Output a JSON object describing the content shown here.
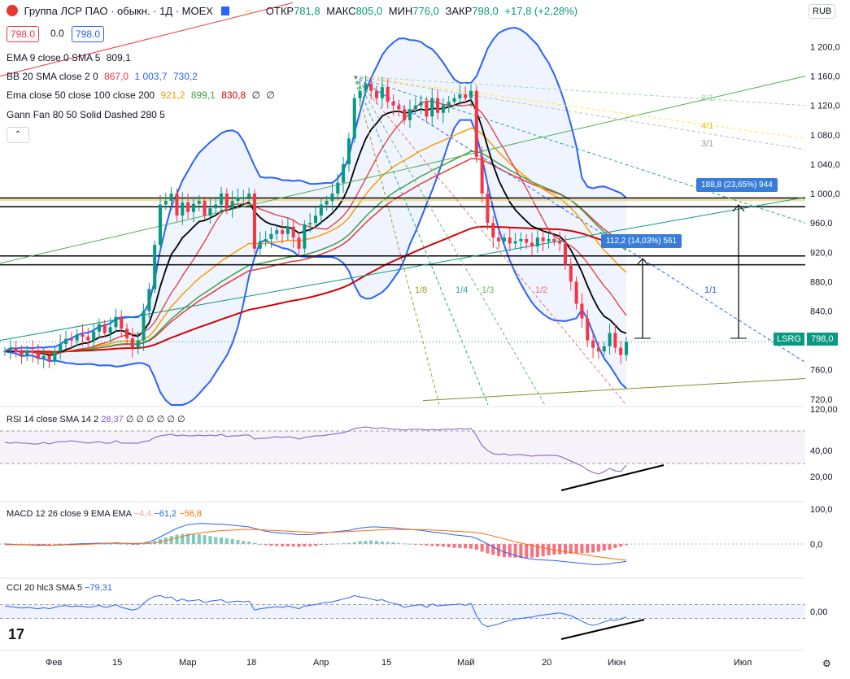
{
  "header": {
    "title": "Группа ЛСР ПАО · обыкн. · 1Д · MOEX",
    "open_label": "ОТКР",
    "open": "781,8",
    "high_label": "МАКС",
    "high": "805,0",
    "low_label": "МИН",
    "low": "776,0",
    "close_label": "ЗАКР",
    "close": "798,0",
    "change": "+17,8 (+2,28%)",
    "currency": "RUB"
  },
  "quote": {
    "bid": "798.0",
    "spread": "0.0",
    "ask": "798.0"
  },
  "legend": {
    "ema9": {
      "label": "EMA 9 close 0 SMA 5",
      "v1": "809,1"
    },
    "bb": {
      "label": "BB 20 SMA close 2 0",
      "v1": "867,0",
      "v2": "1 003,7",
      "v3": "730,2"
    },
    "ema_multi": {
      "label": "Ema close 50 close 100 close 200",
      "v1": "921,2",
      "v2": "899,1",
      "v3": "830,8",
      "v4": "∅",
      "v5": "∅"
    },
    "gann": {
      "label": "Gann Fan 80 50 Solid Dashed 280 5"
    }
  },
  "annotations": {
    "measure_top": "188,8 (23,65%) 944",
    "measure_mid": "112,2 (14,03%) 561",
    "gann_labels": [
      "8/1",
      "4/1",
      "3/1",
      "1/8",
      "1/4",
      "1/3",
      "1/2",
      "1/1"
    ]
  },
  "symbol_tag": "LSRG",
  "last_price": "798,0",
  "rsi": {
    "label": "RSI 14 close SMA 14 2",
    "v1": "28,37",
    "nulls": "∅ ∅ ∅ ∅ ∅ ∅"
  },
  "macd": {
    "label": "MACD 12 26 close 9 EMA EMA",
    "v1": "−4,4",
    "v2": "−61,2",
    "v3": "−56,8"
  },
  "cci": {
    "label": "CCI 20 hlc3 SMA 5",
    "v1": "−79,31"
  },
  "colors": {
    "up": "#089981",
    "down": "#f23645",
    "bb": "#2962ff",
    "ema9": "#000000",
    "ema50": "#e53935",
    "ema100": "#f59f00",
    "ema200": "#43a047",
    "ema_long": "#d50000",
    "rsi": "#7e57c2",
    "macd": "#2962ff",
    "signal": "#ff6d00",
    "cci": "#2962ff"
  },
  "chart_data": [
    {
      "type": "candlestick",
      "title": "",
      "x_tick_labels": [
        "Фев",
        "15",
        "Мар",
        "18",
        "Апр",
        "15",
        "Май",
        "20",
        "Июн",
        "Июл"
      ],
      "y_ticks": [
        720,
        760,
        800,
        840,
        880,
        920,
        960,
        1000,
        1040,
        1080,
        1120,
        1160,
        1200
      ],
      "y_tick_labels": [
        "720,0",
        "760,0",
        "800,0",
        "840,0",
        "880,0",
        "920,0",
        "960,0",
        "1 000,0",
        "1 040,0",
        "1 080,0",
        "1 120,0",
        "1 160,0",
        "1 200,0"
      ],
      "ylim": [
        712,
        1215
      ],
      "close": [
        785,
        788,
        784,
        780,
        786,
        783,
        776,
        779,
        772,
        785,
        795,
        802,
        800,
        808,
        805,
        800,
        812,
        822,
        810,
        818,
        832,
        816,
        803,
        790,
        800,
        840,
        870,
        930,
        985,
        990,
        1000,
        970,
        988,
        975,
        986,
        990,
        970,
        980,
        985,
        1000,
        980,
        990,
        995,
        995,
        1000,
        925,
        935,
        938,
        945,
        950,
        945,
        955,
        940,
        925,
        958,
        960,
        970,
        985,
        990,
        1000,
        1015,
        1040,
        1075,
        1130,
        1140,
        1150,
        1140,
        1130,
        1145,
        1125,
        1120,
        1115,
        1100,
        1115,
        1120,
        1125,
        1105,
        1130,
        1110,
        1120,
        1125,
        1130,
        1135,
        1130,
        1140,
        1050,
        1000,
        960,
        940,
        935,
        940,
        932,
        935,
        938,
        933,
        928,
        940,
        935,
        938,
        935,
        932,
        903,
        880,
        850,
        830,
        800,
        790,
        785,
        792,
        810,
        790,
        780,
        798
      ],
      "high_approx": "close ±12",
      "low_approx": "close ±12",
      "horizontal_levels": [
        994,
        982,
        915,
        903
      ],
      "last": 798
    },
    {
      "type": "line",
      "title": "",
      "y_tick_labels": [
        "120,00",
        "40,00",
        "20,00"
      ],
      "series": [
        {
          "values": [
            56,
            55,
            56,
            55,
            55,
            54,
            54,
            56,
            54,
            56,
            57,
            57,
            58,
            57,
            56,
            55,
            56,
            57,
            55,
            55,
            58,
            55,
            55,
            55,
            55,
            57,
            58,
            62,
            64,
            65,
            66,
            64,
            65,
            64,
            64,
            65,
            64,
            65,
            64,
            66,
            63,
            64,
            64,
            65,
            65,
            60,
            61,
            61,
            62,
            63,
            62,
            63,
            62,
            60,
            62,
            63,
            64,
            64,
            65,
            66,
            67,
            68,
            70,
            73,
            74,
            75,
            74,
            73,
            74,
            73,
            72,
            72,
            71,
            72,
            72,
            72,
            71,
            72,
            71,
            72,
            72,
            72,
            73,
            72,
            73,
            64,
            52,
            46,
            42,
            41,
            42,
            40,
            41,
            41,
            40,
            39,
            40,
            40,
            40,
            40,
            39,
            36,
            33,
            30,
            27,
            22,
            19,
            17,
            20,
            24,
            21,
            20,
            28
          ]
        }
      ]
    },
    {
      "type": "line",
      "title": "",
      "y_tick_labels": [
        "100,0",
        "0,0"
      ],
      "series": [
        {
          "values": [
            0,
            -1,
            -2,
            -3,
            -3,
            -4,
            -5,
            -4,
            -5,
            -4,
            -3,
            -2,
            -1,
            0,
            1,
            1,
            2,
            3,
            2,
            3,
            4,
            3,
            2,
            1,
            1,
            3,
            8,
            15,
            25,
            35,
            45,
            55,
            62,
            68,
            70,
            72,
            72,
            71,
            70,
            70,
            68,
            66,
            64,
            62,
            60,
            55,
            50,
            45,
            42,
            40,
            38,
            37,
            35,
            33,
            33,
            33,
            35,
            38,
            40,
            42,
            44,
            46,
            48,
            52,
            56,
            58,
            60,
            60,
            59,
            58,
            57,
            55,
            53,
            52,
            50,
            48,
            45,
            42,
            40,
            38,
            35,
            32,
            30,
            28,
            26,
            20,
            10,
            0,
            -10,
            -20,
            -28,
            -34,
            -40,
            -46,
            -50,
            -53,
            -55,
            -56,
            -57,
            -58,
            -60,
            -62,
            -64,
            -66,
            -68,
            -70,
            -72,
            -72,
            -71,
            -70,
            -66,
            -64,
            -61
          ]
        },
        {
          "values": [
            -2,
            -2,
            -2,
            -2,
            -3,
            -3,
            -3,
            -3,
            -4,
            -4,
            -4,
            -3,
            -3,
            -2,
            -2,
            -1,
            0,
            1,
            1,
            2,
            2,
            2,
            2,
            2,
            2,
            2,
            3,
            5,
            8,
            12,
            17,
            22,
            27,
            31,
            35,
            38,
            41,
            43,
            45,
            47,
            48,
            49,
            50,
            51,
            51,
            51,
            50,
            49,
            48,
            47,
            46,
            45,
            44,
            43,
            42,
            41,
            41,
            41,
            41,
            41,
            42,
            43,
            44,
            45,
            46,
            47,
            48,
            49,
            50,
            51,
            51,
            51,
            51,
            51,
            51,
            50,
            50,
            49,
            48,
            47,
            46,
            45,
            44,
            43,
            42,
            40,
            37,
            33,
            28,
            23,
            18,
            13,
            8,
            3,
            -1,
            -5,
            -9,
            -13,
            -17,
            -21,
            -24,
            -27,
            -30,
            -33,
            -36,
            -39,
            -42,
            -45,
            -48,
            -50,
            -52,
            -55,
            -57
          ]
        }
      ]
    },
    {
      "type": "line",
      "title": "",
      "y_tick_labels": [
        "0,00"
      ],
      "series": [
        {
          "values": [
            80,
            70,
            60,
            50,
            60,
            50,
            40,
            55,
            40,
            60,
            80,
            85,
            70,
            80,
            75,
            60,
            70,
            90,
            60,
            75,
            100,
            60,
            40,
            20,
            40,
            120,
            180,
            220,
            230,
            200,
            210,
            150,
            180,
            150,
            160,
            170,
            130,
            150,
            160,
            170,
            130,
            140,
            150,
            140,
            150,
            20,
            40,
            50,
            60,
            70,
            60,
            80,
            60,
            40,
            80,
            90,
            100,
            120,
            130,
            140,
            160,
            180,
            200,
            230,
            210,
            200,
            180,
            160,
            170,
            140,
            120,
            100,
            60,
            80,
            90,
            100,
            60,
            110,
            80,
            90,
            95,
            100,
            110,
            90,
            120,
            -60,
            -180,
            -220,
            -200,
            -180,
            -150,
            -130,
            -110,
            -100,
            -90,
            -80,
            -60,
            -50,
            -40,
            -30,
            -20,
            -40,
            -60,
            -100,
            -140,
            -180,
            -200,
            -180,
            -150,
            -120,
            -130,
            -110,
            -79
          ]
        }
      ]
    }
  ]
}
